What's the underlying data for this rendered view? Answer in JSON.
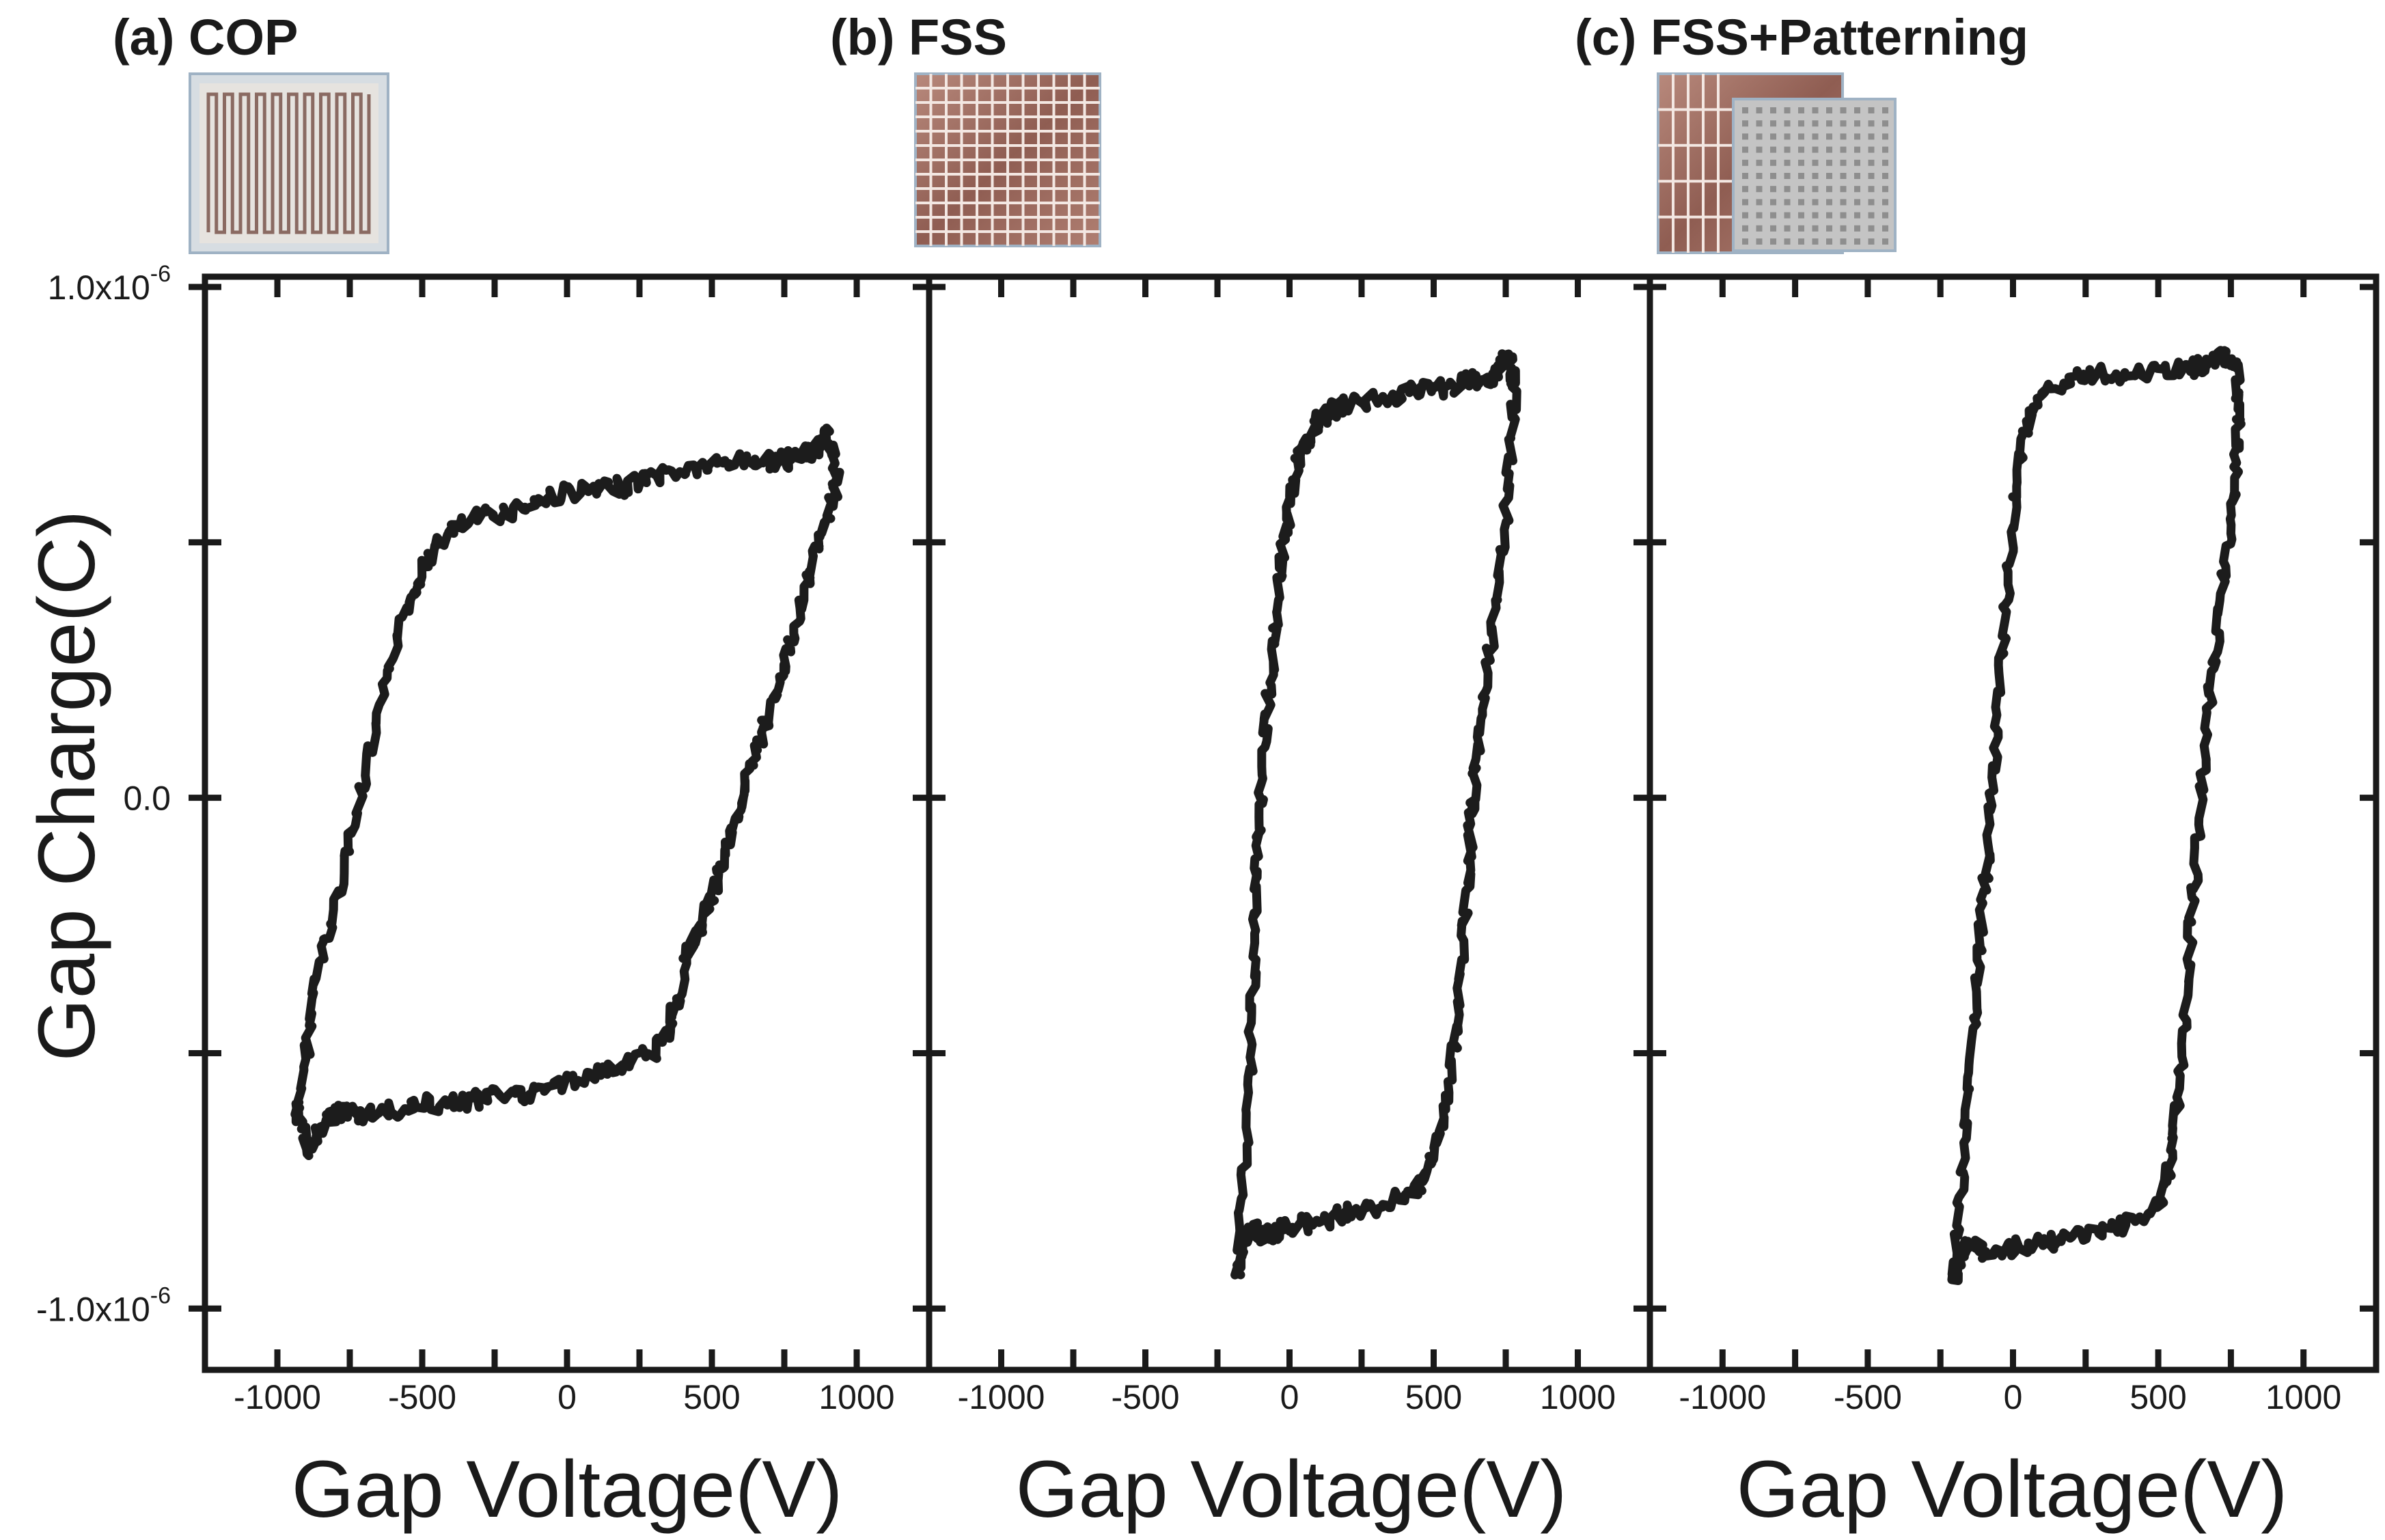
{
  "chart_data": {
    "type": "line",
    "ylabel": "Gap Charge(C)",
    "y_ticks": [
      {
        "value": 1e-06,
        "label": "1.0x10",
        "exp": "-6"
      },
      {
        "value": 0.0,
        "label": "0.0",
        "exp": ""
      },
      {
        "value": -1e-06,
        "label": "-1.0x10",
        "exp": "-6"
      }
    ],
    "ylim": [
      -1.12e-06,
      1.02e-06
    ],
    "xlim": [
      -1250,
      1250
    ],
    "x_ticks": [
      -1000,
      -500,
      0,
      500,
      1000
    ],
    "panels": [
      {
        "label": "(a) COP",
        "xlabel": "Gap Voltage(V)",
        "inset": "serpentine-electrode-image",
        "series": [
          {
            "name": "COP hysteresis loop",
            "x": [
              -930,
              -900,
              -870,
              -820,
              -770,
              -720,
              -660,
              -600,
              -540,
              -500,
              -450,
              -400,
              -300,
              -200,
              -100,
              0,
              100,
              200,
              300,
              400,
              500,
              600,
              700,
              760,
              810,
              850,
              880,
              900,
              920,
              930,
              900,
              860,
              820,
              780,
              740,
              700,
              660,
              620,
              580,
              540,
              500,
              460,
              420,
              380,
              350,
              300,
              200,
              100,
              0,
              -100,
              -200,
              -300,
              -400,
              -500,
              -600,
              -700,
              -760,
              -790,
              -820,
              -860,
              -900,
              -930
            ],
            "y": [
              -6.2e-07,
              -5e-07,
              -3.6e-07,
              -2.6e-07,
              -1.3e-07,
              -2e-08,
              1.3e-07,
              2.8e-07,
              3.9e-07,
              4.5e-07,
              4.9e-07,
              5.2e-07,
              5.5e-07,
              5.6e-07,
              5.8e-07,
              6e-07,
              6e-07,
              6.1e-07,
              6.3e-07,
              6.4e-07,
              6.5e-07,
              6.6e-07,
              6.6e-07,
              6.6e-07,
              6.7e-07,
              6.8e-07,
              7e-07,
              7.1e-07,
              6.7e-07,
              6.2e-07,
              5.5e-07,
              4.8e-07,
              4e-07,
              3.2e-07,
              2.4e-07,
              1.7e-07,
              1e-07,
              3e-08,
              -5e-08,
              -1.2e-07,
              -1.9e-07,
              -2.5e-07,
              -3e-07,
              -4e-07,
              -4.5e-07,
              -5e-07,
              -5.2e-07,
              -5.4e-07,
              -5.6e-07,
              -5.8e-07,
              -5.8e-07,
              -5.9e-07,
              -6e-07,
              -6e-07,
              -6.1e-07,
              -6.2e-07,
              -6.2e-07,
              -6.1e-07,
              -6.3e-07,
              -6.6e-07,
              -6.9e-07,
              -6.2e-07
            ]
          }
        ]
      },
      {
        "label": "(b) FSS",
        "xlabel": "Gap Voltage(V)",
        "inset": "grid-electrode-image",
        "series": [
          {
            "name": "FSS hysteresis loop",
            "x": [
              -180,
              -160,
              -140,
              -130,
              -120,
              -110,
              -100,
              -80,
              -60,
              -40,
              -20,
              0,
              20,
              40,
              80,
              100,
              150,
              200,
              300,
              400,
              500,
              600,
              650,
              700,
              730,
              760,
              780,
              770,
              750,
              720,
              690,
              660,
              640,
              630,
              620,
              600,
              580,
              550,
              520,
              480,
              450,
              400,
              300,
              200,
              100,
              0,
              -50,
              -100,
              -130,
              -160,
              -180
            ],
            "y": [
              -9.2e-07,
              -7.5e-07,
              -5.5e-07,
              -4e-07,
              -2.5e-07,
              -1e-07,
              0.0,
              1.5e-07,
              2.8e-07,
              4e-07,
              5e-07,
              5.7e-07,
              6.3e-07,
              6.8e-07,
              7.2e-07,
              7.4e-07,
              7.6e-07,
              7.7e-07,
              7.8e-07,
              7.9e-07,
              8e-07,
              8.1e-07,
              8.2e-07,
              8.2e-07,
              8.4e-07,
              8.6e-07,
              8.2e-07,
              7e-07,
              5.5e-07,
              4e-07,
              2.7e-07,
              1.5e-07,
              3e-08,
              -5e-08,
              -1.5e-07,
              -3e-07,
              -4.5e-07,
              -5.8e-07,
              -6.6e-07,
              -7.2e-07,
              -7.6e-07,
              -7.8e-07,
              -8e-07,
              -8.1e-07,
              -8.3e-07,
              -8.4e-07,
              -8.5e-07,
              -8.6e-07,
              -8.4e-07,
              -8.8e-07,
              -9.2e-07
            ]
          }
        ]
      },
      {
        "label": "(c) FSS+Patterning",
        "xlabel": "Gap Voltage(V)",
        "inset": "patterned-electrode-image",
        "series": [
          {
            "name": "FSS+Patterning hysteresis loop",
            "x": [
              -200,
              -180,
              -160,
              -140,
              -120,
              -100,
              -80,
              -60,
              -40,
              -20,
              0,
              20,
              50,
              100,
              200,
              300,
              400,
              500,
              600,
              650,
              700,
              740,
              770,
              780,
              770,
              750,
              720,
              690,
              660,
              640,
              620,
              600,
              580,
              560,
              540,
              500,
              400,
              300,
              200,
              100,
              0,
              -100,
              -150,
              -180,
              -200
            ],
            "y": [
              -9.3e-07,
              -7.8e-07,
              -6.3e-07,
              -4.8e-07,
              -3.4e-07,
              -1.9e-07,
              -5e-08,
              1e-07,
              2.6e-07,
              4e-07,
              5.4e-07,
              6.5e-07,
              7.3e-07,
              7.9e-07,
              8.2e-07,
              8.3e-07,
              8.3e-07,
              8.4e-07,
              8.4e-07,
              8.5e-07,
              8.6e-07,
              8.6e-07,
              8.4e-07,
              7.6e-07,
              6.6e-07,
              5.3e-07,
              4e-07,
              2.5e-07,
              1e-07,
              -5e-08,
              -2e-07,
              -3.5e-07,
              -5e-07,
              -6.3e-07,
              -7.3e-07,
              -8e-07,
              -8.3e-07,
              -8.5e-07,
              -8.6e-07,
              -8.7e-07,
              -8.8e-07,
              -8.9e-07,
              -8.7e-07,
              -8.9e-07,
              -9.3e-07
            ]
          }
        ]
      }
    ]
  },
  "colors": {
    "line": "#1c1c1c",
    "axis": "#1a1a1a",
    "inset_border": "#9fb2c4",
    "copper": "#9c6a5e",
    "copper_light": "#cba090",
    "pattern_gray": "#bdbdbd"
  }
}
